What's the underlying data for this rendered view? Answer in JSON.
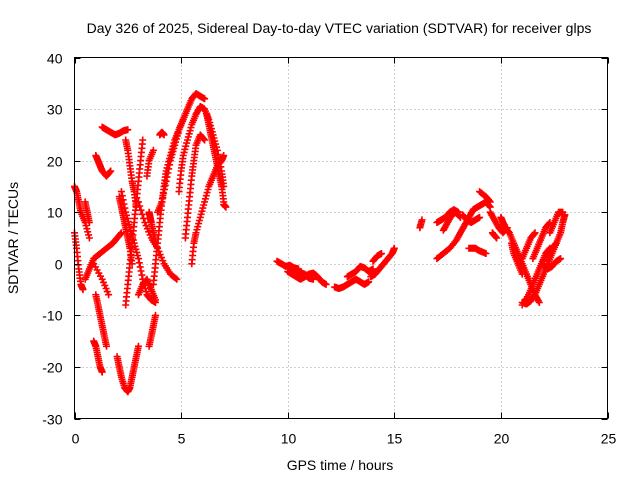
{
  "chart_data": {
    "type": "scatter",
    "title": "Day 326 of 2025, Sidereal Day-to-day VTEC variation (SDTVAR) for receiver glps",
    "xlabel": "GPS time / hours",
    "ylabel": "SDTVAR / TECUs",
    "xlim": [
      0,
      25
    ],
    "ylim": [
      -30,
      40
    ],
    "xticks": [
      0,
      5,
      10,
      15,
      20,
      25
    ],
    "yticks": [
      -30,
      -20,
      -10,
      0,
      10,
      20,
      30,
      40
    ],
    "grid": true,
    "marker": "+",
    "color": "#ff0000",
    "tracks": [
      [
        [
          0.0,
          6.0
        ],
        [
          0.1,
          3.0
        ],
        [
          0.2,
          -1.0
        ],
        [
          0.3,
          -4.0
        ],
        [
          0.4,
          -5.0
        ]
      ],
      [
        [
          0.0,
          15.0
        ],
        [
          0.1,
          14.0
        ],
        [
          0.2,
          12.0
        ],
        [
          0.3,
          10.0
        ],
        [
          0.5,
          8.0
        ],
        [
          0.7,
          5.0
        ]
      ],
      [
        [
          0.5,
          12.0
        ],
        [
          0.6,
          10.0
        ],
        [
          0.7,
          8.0
        ]
      ],
      [
        [
          0.5,
          -3.0
        ],
        [
          0.7,
          -1.0
        ],
        [
          0.9,
          1.0
        ],
        [
          1.2,
          2.0
        ],
        [
          1.5,
          3.0
        ],
        [
          1.8,
          4.0
        ],
        [
          2.0,
          5.0
        ],
        [
          2.2,
          6.0
        ]
      ],
      [
        [
          1.0,
          21.0
        ],
        [
          1.1,
          20.0
        ],
        [
          1.2,
          19.0
        ],
        [
          1.3,
          18.0
        ],
        [
          1.5,
          17.0
        ],
        [
          1.7,
          18.0
        ]
      ],
      [
        [
          1.3,
          26.5
        ],
        [
          1.5,
          26.0
        ],
        [
          1.7,
          25.5
        ],
        [
          1.9,
          25.0
        ],
        [
          2.1,
          25.3
        ],
        [
          2.3,
          25.8
        ],
        [
          2.5,
          26.0
        ]
      ],
      [
        [
          1.0,
          -6.0
        ],
        [
          1.1,
          -8.0
        ],
        [
          1.2,
          -10.0
        ],
        [
          1.3,
          -12.0
        ],
        [
          1.4,
          -14.0
        ],
        [
          1.5,
          -16.0
        ]
      ],
      [
        [
          0.9,
          -15.0
        ],
        [
          1.0,
          -16.0
        ],
        [
          1.1,
          -18.0
        ],
        [
          1.2,
          -20.0
        ],
        [
          1.3,
          -21.0
        ]
      ],
      [
        [
          0.9,
          0.0
        ],
        [
          1.3,
          -3.0
        ],
        [
          1.6,
          -6.0
        ]
      ],
      [
        [
          2.0,
          -18.0
        ],
        [
          2.1,
          -20.0
        ],
        [
          2.2,
          -22.0
        ],
        [
          2.35,
          -24.0
        ],
        [
          2.5,
          -24.8
        ],
        [
          2.6,
          -24.0
        ],
        [
          2.7,
          -22.0
        ],
        [
          2.8,
          -20.0
        ],
        [
          2.9,
          -18.0
        ],
        [
          3.0,
          -16.0
        ]
      ],
      [
        [
          2.1,
          13.0
        ],
        [
          2.2,
          11.0
        ],
        [
          2.3,
          9.0
        ],
        [
          2.4,
          7.0
        ],
        [
          2.5,
          5.0
        ],
        [
          2.6,
          3.0
        ],
        [
          2.7,
          0.0
        ]
      ],
      [
        [
          2.4,
          -8.0
        ],
        [
          2.5,
          -4.0
        ],
        [
          2.6,
          0.0
        ],
        [
          2.7,
          4.0
        ],
        [
          2.8,
          8.0
        ],
        [
          2.9,
          12.0
        ],
        [
          3.0,
          16.0
        ],
        [
          3.1,
          20.0
        ],
        [
          3.2,
          24.0
        ]
      ],
      [
        [
          2.2,
          14.0
        ],
        [
          2.4,
          10.0
        ],
        [
          2.6,
          7.0
        ],
        [
          2.8,
          4.0
        ],
        [
          3.0,
          1.0
        ],
        [
          3.2,
          -3.0
        ],
        [
          3.4,
          -6.0
        ],
        [
          3.6,
          -7.0
        ],
        [
          3.8,
          -7.5
        ]
      ],
      [
        [
          2.4,
          24.0
        ],
        [
          2.5,
          22.0
        ],
        [
          2.6,
          19.0
        ],
        [
          2.7,
          16.0
        ],
        [
          2.8,
          14.0
        ],
        [
          2.9,
          11.0
        ]
      ],
      [
        [
          3.0,
          -6.0
        ],
        [
          3.2,
          -4.0
        ],
        [
          3.4,
          -3.0
        ],
        [
          3.6,
          -5.0
        ],
        [
          3.8,
          -7.0
        ]
      ],
      [
        [
          3.0,
          12.0
        ],
        [
          3.3,
          8.0
        ],
        [
          3.6,
          5.0
        ],
        [
          3.9,
          3.0
        ],
        [
          4.2,
          0.0
        ],
        [
          4.5,
          -2.0
        ],
        [
          4.8,
          -3.0
        ]
      ],
      [
        [
          3.5,
          -16.0
        ],
        [
          3.6,
          -14.0
        ],
        [
          3.7,
          -12.0
        ],
        [
          3.8,
          -10.0
        ]
      ],
      [
        [
          3.5,
          10.0
        ],
        [
          3.55,
          9.0
        ],
        [
          3.6,
          8.0
        ],
        [
          3.7,
          6.0
        ],
        [
          3.8,
          4.0
        ]
      ],
      [
        [
          3.4,
          17.0
        ],
        [
          3.5,
          20.0
        ],
        [
          3.7,
          22.0
        ]
      ],
      [
        [
          4.0,
          25.0
        ],
        [
          4.1,
          25.5
        ],
        [
          4.2,
          25.0
        ]
      ],
      [
        [
          3.7,
          -4.0
        ],
        [
          3.8,
          0.0
        ],
        [
          3.9,
          4.0
        ],
        [
          4.0,
          8.0
        ],
        [
          4.1,
          12.0
        ],
        [
          4.2,
          15.0
        ],
        [
          4.3,
          18.0
        ],
        [
          4.5,
          21.0
        ],
        [
          4.7,
          24.0
        ],
        [
          4.9,
          26.0
        ],
        [
          5.1,
          28.0
        ],
        [
          5.3,
          30.0
        ],
        [
          5.5,
          32.0
        ],
        [
          5.7,
          33.0
        ],
        [
          5.9,
          32.5
        ],
        [
          6.1,
          32.0
        ]
      ],
      [
        [
          3.9,
          10.0
        ],
        [
          4.1,
          12.0
        ],
        [
          4.3,
          16.0
        ],
        [
          4.5,
          20.0
        ],
        [
          4.7,
          23.0
        ],
        [
          4.9,
          26.0
        ],
        [
          5.1,
          28.0
        ]
      ],
      [
        [
          4.9,
          14.0
        ],
        [
          5.0,
          18.0
        ],
        [
          5.1,
          21.0
        ],
        [
          5.3,
          24.0
        ],
        [
          5.5,
          27.0
        ],
        [
          5.7,
          29.0
        ],
        [
          5.9,
          30.5
        ],
        [
          6.1,
          30.0
        ],
        [
          6.3,
          28.0
        ],
        [
          6.5,
          25.0
        ],
        [
          6.7,
          22.0
        ],
        [
          6.9,
          18.0
        ],
        [
          7.0,
          15.0
        ]
      ],
      [
        [
          5.2,
          5.0
        ],
        [
          5.3,
          9.0
        ],
        [
          5.4,
          13.0
        ],
        [
          5.5,
          17.0
        ],
        [
          5.6,
          20.0
        ],
        [
          5.7,
          23.0
        ],
        [
          5.9,
          25.0
        ],
        [
          6.1,
          24.0
        ]
      ],
      [
        [
          5.5,
          0.0
        ],
        [
          5.6,
          4.0
        ],
        [
          5.7,
          6.0
        ],
        [
          5.9,
          9.0
        ],
        [
          6.1,
          12.0
        ],
        [
          6.3,
          15.0
        ],
        [
          6.5,
          17.0
        ],
        [
          6.7,
          19.0
        ],
        [
          6.9,
          20.0
        ],
        [
          7.0,
          21.0
        ]
      ],
      [
        [
          6.2,
          29.0
        ],
        [
          6.3,
          27.0
        ],
        [
          6.4,
          25.0
        ],
        [
          6.5,
          23.0
        ],
        [
          6.6,
          21.0
        ],
        [
          6.7,
          19.0
        ],
        [
          6.8,
          17.0
        ],
        [
          6.9,
          15.0
        ],
        [
          7.0,
          12.0
        ]
      ],
      [
        [
          7.0,
          11.5
        ],
        [
          7.1,
          11.0
        ]
      ],
      [
        [
          9.5,
          0.5
        ],
        [
          9.7,
          0.0
        ],
        [
          9.9,
          -0.5
        ],
        [
          10.1,
          -0.3
        ],
        [
          10.3,
          -0.8
        ],
        [
          10.5,
          -1.0
        ]
      ],
      [
        [
          10.0,
          -1.5
        ],
        [
          10.2,
          -2.0
        ],
        [
          10.4,
          -2.5
        ],
        [
          10.6,
          -3.0
        ],
        [
          10.8,
          -2.5
        ],
        [
          11.0,
          -2.0
        ],
        [
          11.2,
          -1.8
        ],
        [
          11.4,
          -2.5
        ],
        [
          11.6,
          -3.5
        ],
        [
          11.8,
          -4.0
        ]
      ],
      [
        [
          10.2,
          -1.0
        ],
        [
          10.5,
          -1.5
        ],
        [
          10.8,
          -2.0
        ],
        [
          11.0,
          -2.8
        ],
        [
          11.2,
          -3.0
        ]
      ],
      [
        [
          12.2,
          -4.5
        ],
        [
          12.4,
          -4.8
        ],
        [
          12.6,
          -4.5
        ],
        [
          12.8,
          -4.0
        ],
        [
          13.0,
          -3.5
        ],
        [
          13.2,
          -3.0
        ],
        [
          13.4,
          -3.5
        ],
        [
          13.6,
          -4.0
        ],
        [
          13.8,
          -3.5
        ]
      ],
      [
        [
          12.8,
          -2.5
        ],
        [
          13.0,
          -2.0
        ],
        [
          13.2,
          -1.5
        ],
        [
          13.4,
          -0.5
        ],
        [
          13.6,
          -0.8
        ],
        [
          13.8,
          -1.5
        ],
        [
          14.0,
          -1.0
        ]
      ],
      [
        [
          13.9,
          -2.5
        ],
        [
          14.1,
          -2.0
        ],
        [
          14.3,
          -1.0
        ],
        [
          14.5,
          0.0
        ],
        [
          14.7,
          1.0
        ],
        [
          14.9,
          2.0
        ],
        [
          15.0,
          3.0
        ]
      ],
      [
        [
          14.0,
          0.5
        ],
        [
          14.2,
          1.5
        ],
        [
          14.4,
          2.0
        ]
      ],
      [
        [
          16.2,
          7.0
        ],
        [
          16.3,
          8.5
        ]
      ],
      [
        [
          17.0,
          8.0
        ],
        [
          17.2,
          8.5
        ],
        [
          17.4,
          9.0
        ],
        [
          17.6,
          10.0
        ],
        [
          17.8,
          10.5
        ],
        [
          18.0,
          10.0
        ]
      ],
      [
        [
          17.3,
          6.5
        ],
        [
          17.5,
          8.0
        ],
        [
          17.7,
          9.5
        ],
        [
          17.9,
          10.0
        ],
        [
          18.1,
          9.0
        ]
      ],
      [
        [
          17.0,
          1.0
        ],
        [
          17.3,
          2.0
        ],
        [
          17.6,
          3.0
        ],
        [
          17.9,
          4.5
        ],
        [
          18.1,
          6.0
        ],
        [
          18.3,
          7.5
        ],
        [
          18.5,
          9.0
        ],
        [
          18.7,
          10.5
        ],
        [
          18.9,
          11.0
        ],
        [
          19.1,
          11.5
        ],
        [
          19.3,
          12.0
        ],
        [
          19.5,
          11.0
        ]
      ],
      [
        [
          18.2,
          9.5
        ],
        [
          18.4,
          8.5
        ],
        [
          18.6,
          8.0
        ],
        [
          18.8,
          8.5
        ],
        [
          19.0,
          9.0
        ]
      ],
      [
        [
          19.0,
          14.0
        ],
        [
          19.3,
          13.0
        ],
        [
          19.5,
          12.0
        ]
      ],
      [
        [
          19.5,
          10.0
        ],
        [
          19.7,
          8.5
        ],
        [
          19.9,
          7.0
        ],
        [
          20.1,
          6.0
        ],
        [
          20.3,
          7.0
        ]
      ],
      [
        [
          18.5,
          3.0
        ],
        [
          18.8,
          3.0
        ],
        [
          19.0,
          2.5
        ],
        [
          19.3,
          2.0
        ]
      ],
      [
        [
          19.6,
          6.0
        ],
        [
          19.8,
          5.0
        ]
      ],
      [
        [
          20.0,
          9.0
        ],
        [
          20.1,
          8.0
        ],
        [
          20.2,
          7.0
        ],
        [
          20.4,
          6.0
        ],
        [
          20.6,
          4.0
        ],
        [
          20.8,
          2.0
        ],
        [
          21.0,
          0.0
        ],
        [
          21.2,
          -2.0
        ],
        [
          21.4,
          -4.0
        ],
        [
          21.6,
          -6.0
        ],
        [
          21.8,
          -7.5
        ]
      ],
      [
        [
          20.5,
          4.0
        ],
        [
          20.6,
          2.0
        ],
        [
          20.8,
          0.0
        ],
        [
          21.0,
          -2.0
        ]
      ],
      [
        [
          21.0,
          -7.5
        ],
        [
          21.2,
          -7.8
        ],
        [
          21.4,
          -7.2
        ],
        [
          21.6,
          -6.0
        ],
        [
          21.8,
          -4.0
        ],
        [
          22.0,
          -2.0
        ],
        [
          22.2,
          0.0
        ],
        [
          22.4,
          2.0
        ],
        [
          22.6,
          4.0
        ]
      ],
      [
        [
          21.0,
          1.0
        ],
        [
          21.2,
          3.0
        ],
        [
          21.4,
          5.0
        ],
        [
          21.6,
          6.0
        ]
      ],
      [
        [
          21.0,
          -8.0
        ],
        [
          21.3,
          -6.0
        ],
        [
          21.5,
          -4.0
        ],
        [
          21.7,
          -2.0
        ],
        [
          21.9,
          0.0
        ],
        [
          22.1,
          2.0
        ],
        [
          22.3,
          3.0
        ]
      ],
      [
        [
          21.5,
          1.0
        ],
        [
          21.7,
          3.0
        ],
        [
          21.9,
          5.0
        ],
        [
          22.1,
          7.0
        ],
        [
          22.3,
          8.0
        ]
      ],
      [
        [
          22.0,
          0.5
        ],
        [
          22.2,
          2.0
        ],
        [
          22.4,
          3.0
        ],
        [
          22.6,
          4.0
        ],
        [
          22.8,
          6.0
        ],
        [
          22.9,
          8.0
        ],
        [
          23.0,
          9.5
        ]
      ],
      [
        [
          22.3,
          6.0
        ],
        [
          22.5,
          8.0
        ],
        [
          22.7,
          10.0
        ],
        [
          22.9,
          10.0
        ]
      ],
      [
        [
          22.0,
          -0.5
        ],
        [
          22.2,
          -1.0
        ],
        [
          22.4,
          -0.5
        ],
        [
          22.6,
          0.5
        ],
        [
          22.8,
          1.0
        ]
      ]
    ]
  }
}
